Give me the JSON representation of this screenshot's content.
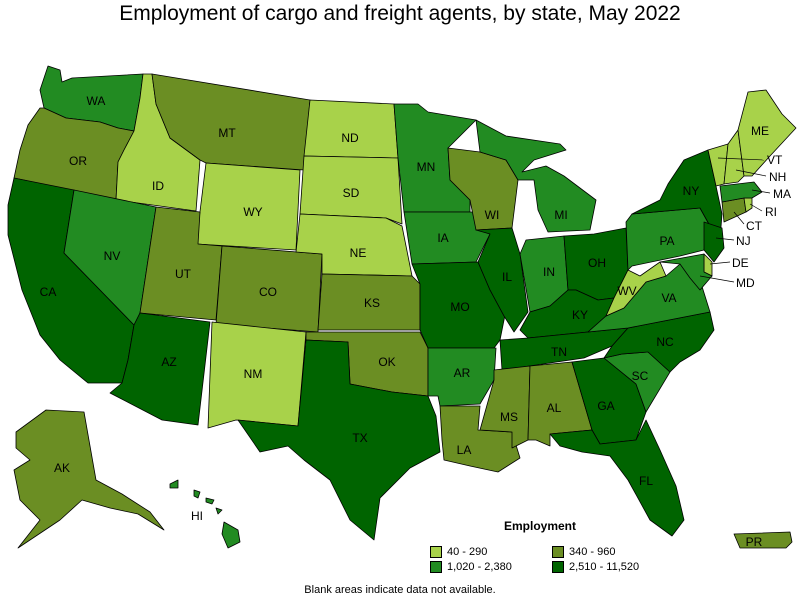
{
  "title": "Employment of cargo and freight agents, by state, May 2022",
  "colors": {
    "c1": "#a8d24a",
    "c2": "#6b8e23",
    "c3": "#228b22",
    "c4": "#006400",
    "stroke": "#000000"
  },
  "legend": {
    "title": "Employment",
    "items": [
      {
        "range": "40 - 290",
        "color_key": "c1"
      },
      {
        "range": "340 - 960",
        "color_key": "c2"
      },
      {
        "range": "1,020 - 2,380",
        "color_key": "c3"
      },
      {
        "range": "2,510 - 11,520",
        "color_key": "c4"
      }
    ]
  },
  "states": {
    "WA": {
      "label": "WA",
      "class": "c3"
    },
    "OR": {
      "label": "OR",
      "class": "c2"
    },
    "CA": {
      "label": "CA",
      "class": "c4"
    },
    "ID": {
      "label": "ID",
      "class": "c1"
    },
    "NV": {
      "label": "NV",
      "class": "c3"
    },
    "MT": {
      "label": "MT",
      "class": "c2"
    },
    "WY": {
      "label": "WY",
      "class": "c1"
    },
    "UT": {
      "label": "UT",
      "class": "c2"
    },
    "AZ": {
      "label": "AZ",
      "class": "c4"
    },
    "CO": {
      "label": "CO",
      "class": "c2"
    },
    "NM": {
      "label": "NM",
      "class": "c1"
    },
    "ND": {
      "label": "ND",
      "class": "c1"
    },
    "SD": {
      "label": "SD",
      "class": "c1"
    },
    "NE": {
      "label": "NE",
      "class": "c1"
    },
    "KS": {
      "label": "KS",
      "class": "c2"
    },
    "OK": {
      "label": "OK",
      "class": "c2"
    },
    "TX": {
      "label": "TX",
      "class": "c4"
    },
    "MN": {
      "label": "MN",
      "class": "c3"
    },
    "IA": {
      "label": "IA",
      "class": "c3"
    },
    "MO": {
      "label": "MO",
      "class": "c4"
    },
    "AR": {
      "label": "AR",
      "class": "c3"
    },
    "LA": {
      "label": "LA",
      "class": "c2"
    },
    "WI": {
      "label": "WI",
      "class": "c2"
    },
    "IL": {
      "label": "IL",
      "class": "c4"
    },
    "MI": {
      "label": "MI",
      "class": "c3"
    },
    "IN": {
      "label": "IN",
      "class": "c3"
    },
    "OH": {
      "label": "OH",
      "class": "c4"
    },
    "KY": {
      "label": "KY",
      "class": "c4"
    },
    "TN": {
      "label": "TN",
      "class": "c4"
    },
    "MS": {
      "label": "MS",
      "class": "c2"
    },
    "AL": {
      "label": "AL",
      "class": "c2"
    },
    "GA": {
      "label": "GA",
      "class": "c4"
    },
    "FL": {
      "label": "FL",
      "class": "c4"
    },
    "SC": {
      "label": "SC",
      "class": "c3"
    },
    "NC": {
      "label": "NC",
      "class": "c4"
    },
    "VA": {
      "label": "VA",
      "class": "c3"
    },
    "WV": {
      "label": "WV",
      "class": "c1"
    },
    "PA": {
      "label": "PA",
      "class": "c3"
    },
    "NY": {
      "label": "NY",
      "class": "c4"
    },
    "ME": {
      "label": "ME",
      "class": "c1"
    },
    "VT": {
      "label": "VT",
      "class": "c1"
    },
    "NH": {
      "label": "NH",
      "class": "c1"
    },
    "MA": {
      "label": "MA",
      "class": "c3"
    },
    "RI": {
      "label": "RI",
      "class": "c1"
    },
    "CT": {
      "label": "CT",
      "class": "c2"
    },
    "NJ": {
      "label": "NJ",
      "class": "c4"
    },
    "DE": {
      "label": "DE",
      "class": "c1"
    },
    "MD": {
      "label": "MD",
      "class": "c3"
    },
    "AK": {
      "label": "AK",
      "class": "c2"
    },
    "HI": {
      "label": "HI",
      "class": "c3"
    },
    "PR": {
      "label": "PR",
      "class": "c2"
    }
  },
  "footnote": "Blank areas indicate data not available."
}
